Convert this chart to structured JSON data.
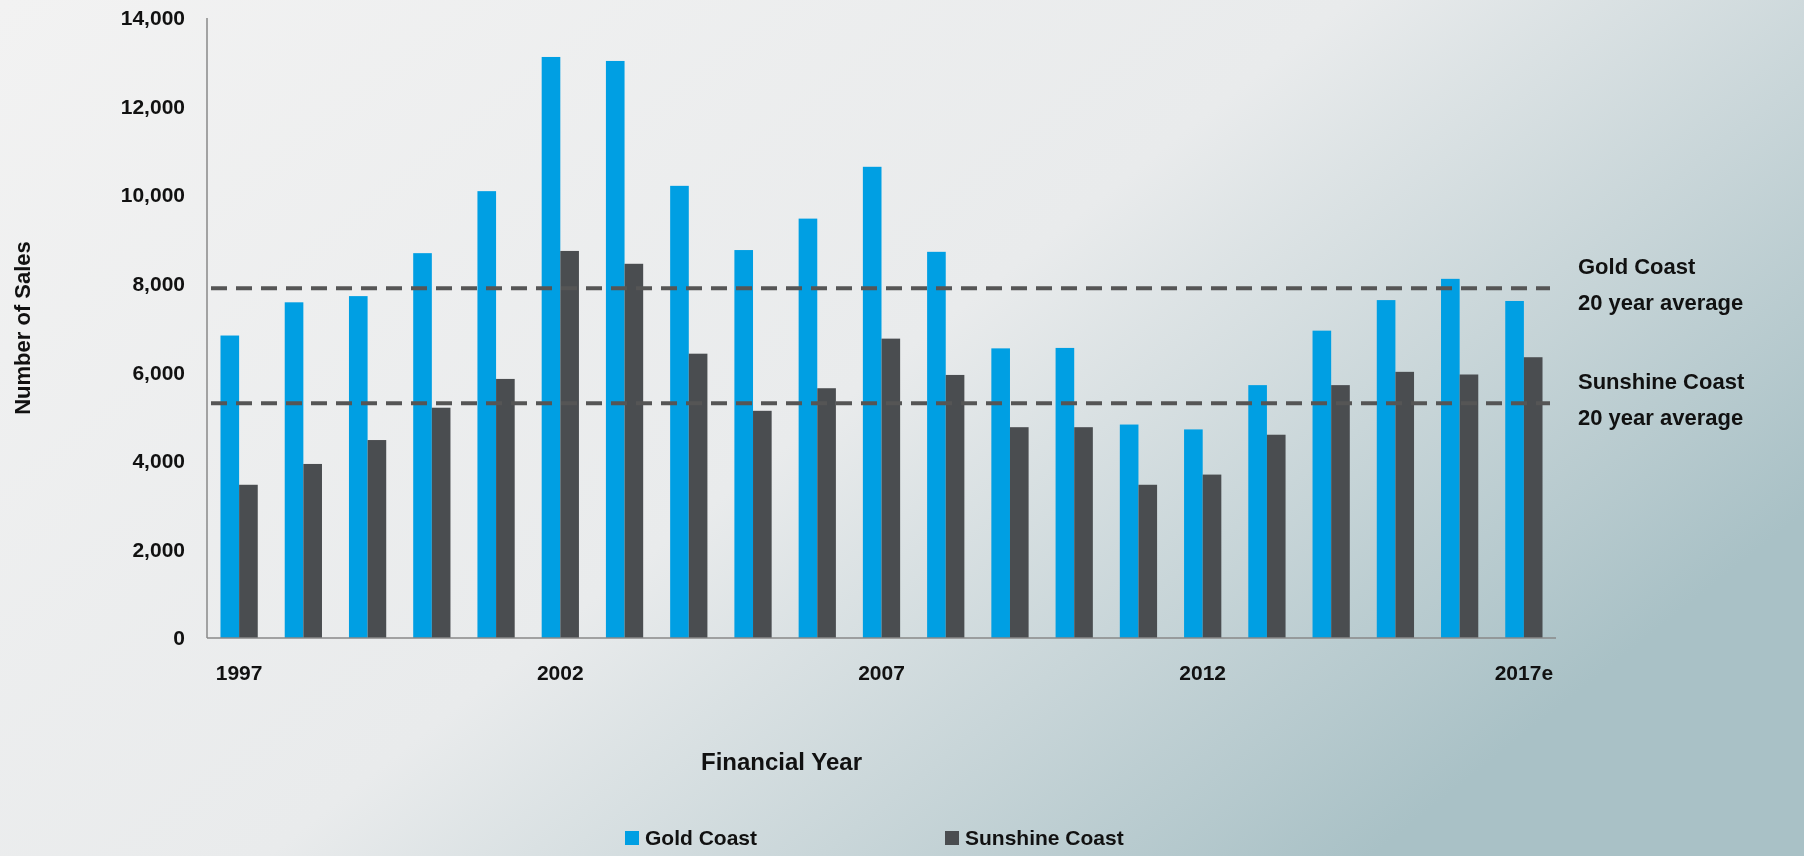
{
  "chart_data": {
    "type": "bar",
    "xlabel": "Financial Year",
    "ylabel": "Number of Sales",
    "categories": [
      "1997",
      null,
      null,
      null,
      null,
      "2002",
      null,
      null,
      null,
      null,
      "2007",
      null,
      null,
      null,
      null,
      "2012",
      null,
      null,
      null,
      null,
      "2017e"
    ],
    "series": [
      {
        "name": "Gold Coast",
        "color": "#009fe3",
        "values": [
          6830,
          7580,
          7720,
          8690,
          10090,
          13120,
          13030,
          10210,
          8760,
          9470,
          10640,
          8720,
          6540,
          6550,
          4820,
          4710,
          5710,
          6940,
          7630,
          8110,
          7610
        ]
      },
      {
        "name": "Sunshine Coast",
        "color": "#4a4d50",
        "values": [
          3460,
          3930,
          4470,
          5200,
          5850,
          8740,
          8450,
          6420,
          5130,
          5640,
          6760,
          5940,
          4760,
          4760,
          3460,
          3690,
          4590,
          5710,
          6010,
          5950,
          6340
        ]
      }
    ],
    "ylim": [
      0,
      14000
    ],
    "yticks": [
      {
        "value": 0,
        "label": "0"
      },
      {
        "value": 2000,
        "label": "2,000"
      },
      {
        "value": 4000,
        "label": "4,000"
      },
      {
        "value": 6000,
        "label": "6,000"
      },
      {
        "value": 8000,
        "label": "8,000"
      },
      {
        "value": 10000,
        "label": "10,000"
      },
      {
        "value": 12000,
        "label": "12,000"
      },
      {
        "value": 14000,
        "label": "14,000"
      }
    ],
    "ref_lines": [
      {
        "axis": "y",
        "value": 7900,
        "label": "Gold Coast\n20 year average",
        "color": "#555555",
        "line_style": "dashed"
      },
      {
        "axis": "y",
        "value": 5300,
        "label": "Sunshine Coast\n20 year average",
        "color": "#555555",
        "line_style": "dashed"
      }
    ],
    "grid": false,
    "legend": "bottom"
  }
}
